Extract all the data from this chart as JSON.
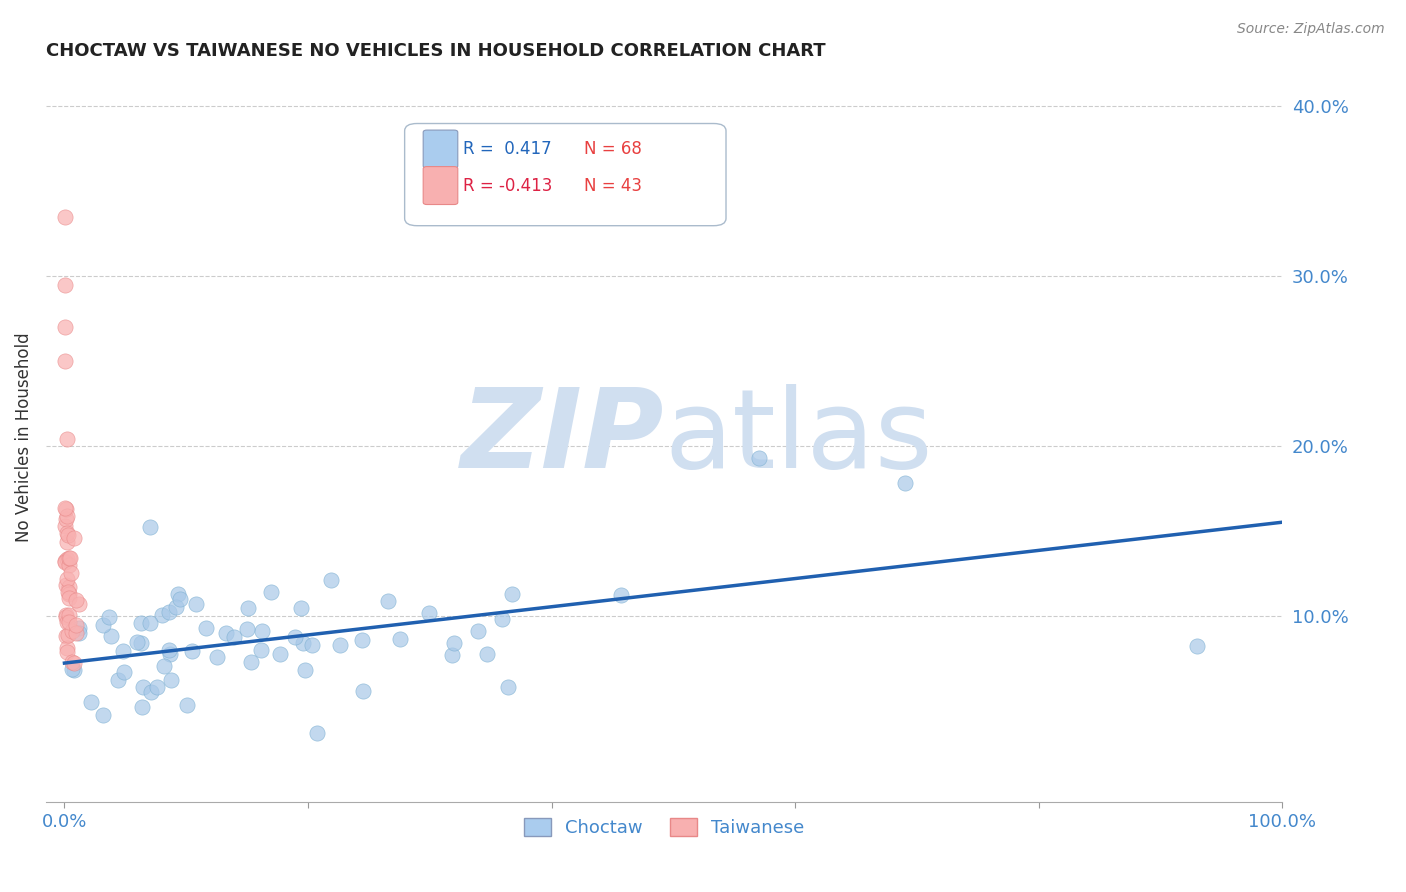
{
  "title": "CHOCTAW VS TAIWANESE NO VEHICLES IN HOUSEHOLD CORRELATION CHART",
  "source": "Source: ZipAtlas.com",
  "ylabel": "No Vehicles in Household",
  "legend_label_blue": "Choctaw",
  "legend_label_pink": "Taiwanese",
  "blue_color": "#a8c8e8",
  "blue_edge_color": "#7aaed0",
  "pink_color": "#f8b0b0",
  "pink_edge_color": "#e88888",
  "blue_line_color": "#2060b0",
  "bg_color": "#ffffff",
  "watermark_zip": "ZIP",
  "watermark_atlas": "atlas",
  "watermark_color": "#d0dff0",
  "grid_color": "#cccccc",
  "title_color": "#222222",
  "axis_color": "#4488cc",
  "right_tick_color": "#4488cc",
  "legend_box_bg": "#ffffff",
  "legend_box_border": "#aabbcc",
  "legend_blue_sq": "#aaccee",
  "legend_pink_sq": "#f8b0b0",
  "legend_r_blue": "R =  0.417",
  "legend_n_blue": "N = 68",
  "legend_r_pink": "R = -0.413",
  "legend_n_pink": "N = 43",
  "ytick_vals": [
    0.0,
    0.1,
    0.2,
    0.3,
    0.4
  ],
  "ytick_labels_right": [
    "",
    "10.0%",
    "20.0%",
    "30.0%",
    "40.0%"
  ],
  "xlim": [
    0.0,
    1.0
  ],
  "ylim": [
    0.0,
    0.42
  ],
  "choctaw_trend_x0": 0.0,
  "choctaw_trend_y0": 0.072,
  "choctaw_trend_x1": 1.0,
  "choctaw_trend_y1": 0.155,
  "scatter_alpha": 0.7,
  "scatter_size": 120
}
